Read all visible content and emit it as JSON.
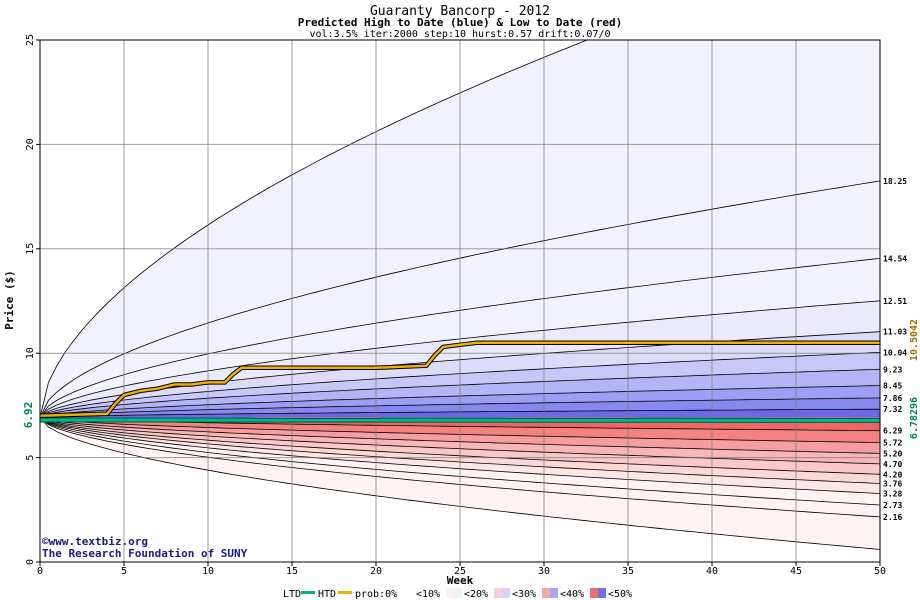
{
  "chart_data": {
    "type": "area",
    "title": "Guaranty Bancorp - 2012",
    "subtitle": "Predicted High to Date (blue) &  Low to Date (red)",
    "params": "vol:3.5% iter:2000 step:10 hurst:0.57 drift:0.07/0",
    "xlabel": "Week",
    "ylabel": "Price ($)",
    "xlim": [
      0,
      50
    ],
    "ylim": [
      0,
      25
    ],
    "x_ticks": [
      "0",
      "5",
      "10",
      "15",
      "20",
      "25",
      "30",
      "35",
      "40",
      "45",
      "50"
    ],
    "y_ticks": [
      "0",
      "5",
      "10",
      "15",
      "20",
      "25"
    ],
    "start_price": 6.92,
    "start_price_label": "6.92",
    "grid": true,
    "high_bands": [
      {
        "final": 7.32,
        "label": "7.32"
      },
      {
        "final": 7.86,
        "label": "7.86"
      },
      {
        "final": 8.45,
        "label": "8.45"
      },
      {
        "final": 9.23,
        "label": "9.23"
      },
      {
        "final": 10.04,
        "label": "10.04"
      },
      {
        "final": 11.03,
        "label": "11.03"
      },
      {
        "final": 12.51,
        "label": "12.51"
      },
      {
        "final": 14.54,
        "label": "14.54"
      },
      {
        "final": 18.25,
        "label": "18.25"
      }
    ],
    "high_outer_final": 30.0,
    "low_bands": [
      {
        "final": 6.29,
        "label": "6.29"
      },
      {
        "final": 5.72,
        "label": "5.72"
      },
      {
        "final": 5.2,
        "label": "5.20"
      },
      {
        "final": 4.7,
        "label": "4.70"
      },
      {
        "final": 4.2,
        "label": "4.20"
      },
      {
        "final": 3.76,
        "label": "3.76"
      },
      {
        "final": 3.28,
        "label": "3.28"
      },
      {
        "final": 2.73,
        "label": "2.73"
      },
      {
        "final": 2.16,
        "label": "2.16"
      }
    ],
    "low_outer_final": 0.6,
    "htd": {
      "name": "HTD",
      "label": "10.5042",
      "x": [
        0,
        4,
        4.5,
        5,
        6,
        7,
        8,
        9,
        10,
        11,
        11.5,
        12,
        20,
        23,
        23.5,
        24,
        25,
        26,
        50
      ],
      "y": [
        7.0,
        7.1,
        7.6,
        8.0,
        8.2,
        8.3,
        8.5,
        8.5,
        8.6,
        8.6,
        9.0,
        9.3,
        9.3,
        9.4,
        9.9,
        10.3,
        10.4,
        10.5,
        10.5
      ]
    },
    "ltd": {
      "name": "LTD",
      "label": "6.78296",
      "x": [
        0,
        50
      ],
      "y": [
        6.8,
        6.78
      ]
    },
    "colors": {
      "htd": "#f0b000",
      "ltd": "#00b88a",
      "htd_label": "#a07000",
      "ltd_label": "#008060",
      "blue_bands": [
        "#6a6ae8",
        "#8888ee",
        "#9e9ef4",
        "#b4b4f6",
        "#c8c8f8",
        "#dcdcfa",
        "#eaeafc",
        "#f2f2fd"
      ],
      "red_bands": [
        "#f06666",
        "#f48282",
        "#f69e9e",
        "#f8b6b6",
        "#fac8c8",
        "#fcd8d8",
        "#fde6e6",
        "#fef2f2"
      ]
    },
    "watermark": [
      "©www.textbiz.org",
      "The Research Foundation of SUNY"
    ],
    "legend": {
      "ltd": "LTD",
      "htd": "HTD",
      "prob": "prob:0%",
      "b10": "<10%",
      "b20": "<20%",
      "b30": "<30%",
      "b40": "<40%",
      "b50": "<50%"
    }
  }
}
